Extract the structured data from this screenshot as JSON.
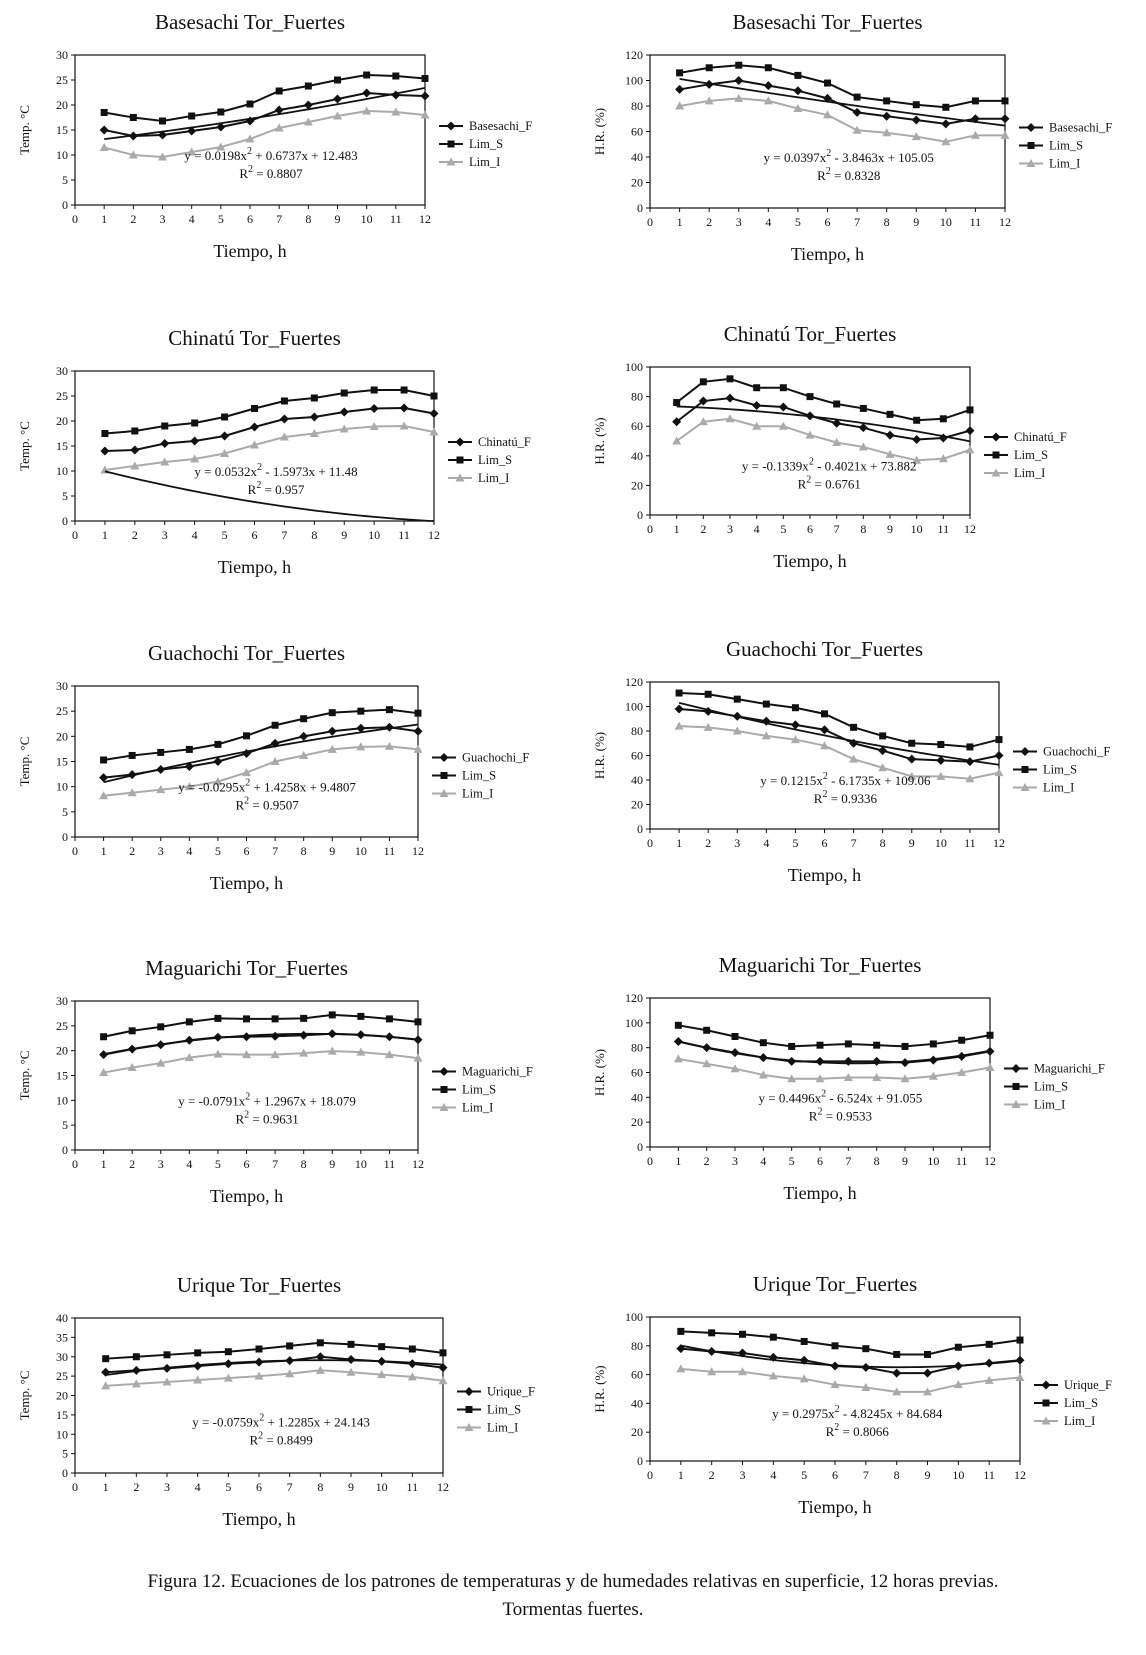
{
  "figure": {
    "caption_line1": "Figura 12. Ecuaciones de los patrones de temperaturas y de humedades relativas en superficie, 12 horas previas.",
    "caption_line2": "Tormentas fuertes."
  },
  "colors": {
    "black": "#111111",
    "gray": "#aaaaaa"
  },
  "chart_data": [
    {
      "type": "line",
      "title": "Basesachi Tor_Fuertes",
      "xlabel": "Tiempo, h",
      "ylabel": "Temp. °C",
      "xlim": [
        0,
        12
      ],
      "ylim": [
        0,
        30
      ],
      "ystep": 5,
      "series": [
        {
          "name": "Basesachi_F",
          "marker": "diamond",
          "color": "#111111",
          "values": [
            15,
            13.8,
            14,
            14.8,
            15.6,
            16.8,
            19,
            20,
            21.2,
            22.4,
            22,
            21.8
          ]
        },
        {
          "name": "Lim_S",
          "marker": "square",
          "color": "#111111",
          "values": [
            18.5,
            17.5,
            16.8,
            17.8,
            18.6,
            20.2,
            22.8,
            23.8,
            25,
            26,
            25.8,
            25.3
          ]
        },
        {
          "name": "Lim_I",
          "marker": "triangle",
          "color": "#aaaaaa",
          "values": [
            11.5,
            10,
            9.6,
            10.6,
            11.6,
            13.2,
            15.4,
            16.6,
            17.8,
            18.8,
            18.6,
            18
          ]
        }
      ],
      "fit": [
        0.0198,
        0.6737,
        12.483
      ],
      "equation": "y = 0.0198x² + 0.6737x + 12.483",
      "r2": "R² = 0.8807"
    },
    {
      "type": "line",
      "title": "Basesachi Tor_Fuertes",
      "xlabel": "Tiempo, h",
      "ylabel": "H.R. (%)",
      "xlim": [
        0,
        12
      ],
      "ylim": [
        0,
        120
      ],
      "ystep": 20,
      "series": [
        {
          "name": "Basesachi_F",
          "marker": "diamond",
          "color": "#111111",
          "values": [
            93,
            97,
            100,
            96,
            92,
            86,
            75,
            72,
            69,
            66,
            70,
            70
          ]
        },
        {
          "name": "Lim_S",
          "marker": "square",
          "color": "#111111",
          "values": [
            106,
            110,
            112,
            110,
            104,
            98,
            87,
            84,
            81,
            79,
            84,
            84
          ]
        },
        {
          "name": "Lim_I",
          "marker": "triangle",
          "color": "#aaaaaa",
          "values": [
            80,
            84,
            86,
            84,
            78,
            73,
            61,
            59,
            56,
            52,
            57,
            57
          ]
        }
      ],
      "fit": [
        0.0397,
        -3.8463,
        105.05
      ],
      "equation": "y = 0.0397x² - 3.8463x + 105.05",
      "r2": "R² = 0.8328"
    },
    {
      "type": "line",
      "title": "Chinatú Tor_Fuertes",
      "xlabel": "Tiempo, h",
      "ylabel": "Temp. °C",
      "xlim": [
        0,
        12
      ],
      "ylim": [
        0,
        30
      ],
      "ystep": 5,
      "series": [
        {
          "name": "Chinatú_F",
          "marker": "diamond",
          "color": "#111111",
          "values": [
            14,
            14.2,
            15.5,
            16,
            17,
            18.8,
            20.4,
            20.8,
            21.8,
            22.5,
            22.6,
            21.5
          ]
        },
        {
          "name": "Lim_S",
          "marker": "square",
          "color": "#111111",
          "values": [
            17.5,
            18,
            19,
            19.6,
            20.8,
            22.5,
            24,
            24.6,
            25.6,
            26.2,
            26.2,
            25
          ]
        },
        {
          "name": "Lim_I",
          "marker": "triangle",
          "color": "#aaaaaa",
          "values": [
            10.2,
            11,
            11.8,
            12.4,
            13.5,
            15.2,
            16.8,
            17.5,
            18.4,
            18.9,
            19,
            17.8
          ]
        }
      ],
      "fit": [
        0.0532,
        -1.5973,
        11.48
      ],
      "equation": "y = 0.0532x² - 1.5973x + 11.48",
      "r2": "R² = 0.957"
    },
    {
      "type": "line",
      "title": "Chinatú Tor_Fuertes",
      "xlabel": "Tiempo, h",
      "ylabel": "H.R. (%)",
      "xlim": [
        0,
        12
      ],
      "ylim": [
        0,
        100
      ],
      "ystep": 20,
      "series": [
        {
          "name": "Chinatú_F",
          "marker": "diamond",
          "color": "#111111",
          "values": [
            63,
            77,
            79,
            74,
            73,
            67,
            62,
            59,
            54,
            51,
            52,
            57
          ]
        },
        {
          "name": "Lim_S",
          "marker": "square",
          "color": "#111111",
          "values": [
            76,
            90,
            92,
            86,
            86,
            80,
            75,
            72,
            68,
            64,
            65,
            71
          ]
        },
        {
          "name": "Lim_I",
          "marker": "triangle",
          "color": "#aaaaaa",
          "values": [
            50,
            63,
            65,
            60,
            60,
            54,
            49,
            46,
            41,
            37,
            38,
            44
          ]
        }
      ],
      "fit": [
        -0.1339,
        -0.4021,
        73.882
      ],
      "equation": "y = -0.1339x² - 0.4021x + 73.882",
      "r2": "R² = 0.6761"
    },
    {
      "type": "line",
      "title": "Guachochi Tor_Fuertes",
      "xlabel": "Tiempo, h",
      "ylabel": "Temp. °C",
      "xlim": [
        0,
        12
      ],
      "ylim": [
        0,
        30
      ],
      "ystep": 5,
      "series": [
        {
          "name": "Guachochi_F",
          "marker": "diamond",
          "color": "#111111",
          "values": [
            11.8,
            12.4,
            13.4,
            14,
            15,
            16.6,
            18.6,
            20,
            21,
            21.6,
            21.8,
            21
          ]
        },
        {
          "name": "Lim_S",
          "marker": "square",
          "color": "#111111",
          "values": [
            15.3,
            16.2,
            16.8,
            17.4,
            18.4,
            20.1,
            22.2,
            23.5,
            24.7,
            25,
            25.3,
            24.6
          ]
        },
        {
          "name": "Lim_I",
          "marker": "triangle",
          "color": "#aaaaaa",
          "values": [
            8.2,
            8.8,
            9.4,
            10,
            11,
            12.8,
            15,
            16.2,
            17.4,
            17.9,
            18,
            17.4
          ]
        }
      ],
      "fit": [
        -0.0295,
        1.4258,
        9.4807
      ],
      "equation": "y = -0.0295x² + 1.4258x + 9.4807",
      "r2": "R² = 0.9507"
    },
    {
      "type": "line",
      "title": "Guachochi Tor_Fuertes",
      "xlabel": "Tiempo, h",
      "ylabel": "H.R. (%)",
      "xlim": [
        0,
        12
      ],
      "ylim": [
        0,
        120
      ],
      "ystep": 20,
      "series": [
        {
          "name": "Guachochi_F",
          "marker": "diamond",
          "color": "#111111",
          "values": [
            98,
            96,
            92,
            88,
            85,
            81,
            70,
            64,
            57,
            56,
            55,
            60
          ]
        },
        {
          "name": "Lim_S",
          "marker": "square",
          "color": "#111111",
          "values": [
            111,
            110,
            106,
            102,
            99,
            94,
            83,
            76,
            70,
            69,
            67,
            73
          ]
        },
        {
          "name": "Lim_I",
          "marker": "triangle",
          "color": "#aaaaaa",
          "values": [
            84,
            83,
            80,
            76,
            73,
            68,
            57,
            50,
            43,
            43,
            41,
            46
          ]
        }
      ],
      "fit": [
        0.1215,
        -6.1735,
        109.06
      ],
      "equation": "y = 0.1215x² - 6.1735x + 109.06",
      "r2": "R² = 0.9336"
    },
    {
      "type": "line",
      "title": "Maguarichi Tor_Fuertes",
      "xlabel": "Tiempo, h",
      "ylabel": "Temp. °C",
      "xlim": [
        0,
        12
      ],
      "ylim": [
        0,
        30
      ],
      "ystep": 5,
      "series": [
        {
          "name": "Maguarichi_F",
          "marker": "diamond",
          "color": "#111111",
          "values": [
            19.2,
            20.3,
            21.2,
            22.1,
            22.7,
            22.8,
            22.9,
            23.1,
            23.4,
            23.2,
            22.8,
            22.2
          ]
        },
        {
          "name": "Lim_S",
          "marker": "square",
          "color": "#111111",
          "values": [
            22.8,
            24,
            24.8,
            25.8,
            26.5,
            26.4,
            26.4,
            26.5,
            27.2,
            26.9,
            26.4,
            25.8
          ]
        },
        {
          "name": "Lim_I",
          "marker": "triangle",
          "color": "#aaaaaa",
          "values": [
            15.6,
            16.6,
            17.5,
            18.6,
            19.3,
            19.2,
            19.2,
            19.5,
            19.9,
            19.7,
            19.2,
            18.5
          ]
        }
      ],
      "fit": [
        -0.0791,
        1.2967,
        18.079
      ],
      "equation": "y = -0.0791x² + 1.2967x + 18.079",
      "r2": "R² = 0.9631"
    },
    {
      "type": "line",
      "title": "Maguarichi Tor_Fuertes",
      "xlabel": "Tiempo, h",
      "ylabel": "H.R. (%)",
      "xlim": [
        0,
        12
      ],
      "ylim": [
        0,
        120
      ],
      "ystep": 20,
      "series": [
        {
          "name": "Maguarichi_F",
          "marker": "diamond",
          "color": "#111111",
          "values": [
            85,
            80,
            76,
            72,
            69,
            69,
            69,
            69,
            68,
            70,
            73,
            77
          ]
        },
        {
          "name": "Lim_S",
          "marker": "square",
          "color": "#111111",
          "values": [
            98,
            94,
            89,
            84,
            81,
            82,
            83,
            82,
            81,
            83,
            86,
            90
          ]
        },
        {
          "name": "Lim_I",
          "marker": "triangle",
          "color": "#aaaaaa",
          "values": [
            71,
            67,
            63,
            58,
            55,
            55,
            56,
            56,
            55,
            57,
            60,
            64
          ]
        }
      ],
      "fit": [
        0.4496,
        -6.524,
        91.055
      ],
      "equation": "y = 0.4496x² - 6.524x + 91.055",
      "r2": "R² = 0.9533"
    },
    {
      "type": "line",
      "title": "Urique Tor_Fuertes",
      "xlabel": "Tiempo, h",
      "ylabel": "Temp. °C",
      "xlim": [
        0,
        12
      ],
      "ylim": [
        0,
        40
      ],
      "ystep": 5,
      "series": [
        {
          "name": "Urique_F",
          "marker": "diamond",
          "color": "#111111",
          "values": [
            26,
            26.5,
            27,
            27.6,
            28.2,
            28.6,
            29,
            30,
            29.3,
            28.8,
            28.2,
            27.2
          ]
        },
        {
          "name": "Lim_S",
          "marker": "square",
          "color": "#111111",
          "values": [
            29.5,
            30,
            30.5,
            31,
            31.3,
            32,
            32.8,
            33.6,
            33.2,
            32.6,
            32,
            31
          ]
        },
        {
          "name": "Lim_I",
          "marker": "triangle",
          "color": "#aaaaaa",
          "values": [
            22.5,
            23,
            23.5,
            24,
            24.5,
            25,
            25.6,
            26.5,
            26,
            25.4,
            24.8,
            23.8
          ]
        }
      ],
      "fit": [
        -0.0759,
        1.2285,
        24.143
      ],
      "equation": "y = -0.0759x² + 1.2285x + 24.143",
      "r2": "R² = 0.8499"
    },
    {
      "type": "line",
      "title": "Urique Tor_Fuertes",
      "xlabel": "Tiempo, h",
      "ylabel": "H.R. (%)",
      "xlim": [
        0,
        12
      ],
      "ylim": [
        0,
        100
      ],
      "ystep": 20,
      "series": [
        {
          "name": "Urique_F",
          "marker": "diamond",
          "color": "#111111",
          "values": [
            78,
            76,
            75,
            72,
            70,
            66,
            65,
            61,
            61,
            66,
            68,
            70
          ]
        },
        {
          "name": "Lim_S",
          "marker": "square",
          "color": "#111111",
          "values": [
            90,
            89,
            88,
            86,
            83,
            80,
            78,
            74,
            74,
            79,
            81,
            84
          ]
        },
        {
          "name": "Lim_I",
          "marker": "triangle",
          "color": "#aaaaaa",
          "values": [
            64,
            62,
            62,
            59,
            57,
            53,
            51,
            48,
            48,
            53,
            56,
            58
          ]
        }
      ],
      "fit": [
        0.2975,
        -4.8245,
        84.684
      ],
      "equation": "y = 0.2975x² - 4.8245x + 84.684",
      "r2": "R² = 0.8066"
    }
  ]
}
